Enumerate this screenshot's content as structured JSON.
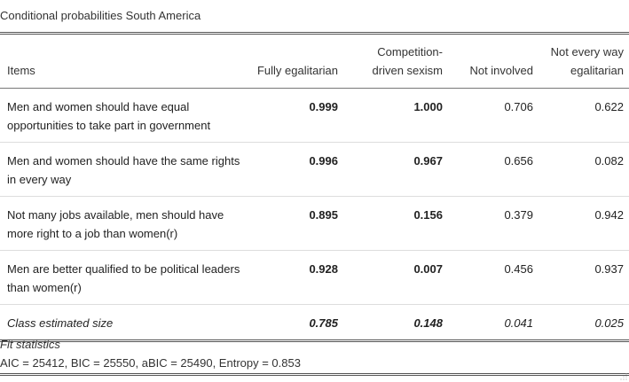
{
  "caption": "Conditional probabilities South America",
  "table": {
    "headers": {
      "items": "Items",
      "col1": "Fully egalitarian",
      "col2_line1": "Competition-",
      "col2_line2": "driven sexism",
      "col3": "Not involved",
      "col4_line1": "Not every way",
      "col4_line2": "egalitarian"
    },
    "rows": [
      {
        "item": "Men and women should have equal opportunities to take part in government",
        "v1": "0.999",
        "v2": "1.000",
        "v3": "0.706",
        "v4": "0.622"
      },
      {
        "item": "Men and women should have the same rights in every way",
        "v1": "0.996",
        "v2": "0.967",
        "v3": "0.656",
        "v4": "0.082"
      },
      {
        "item": "Not many jobs available, men should have more right to a job than women(r)",
        "v1": "0.895",
        "v2": "0.156",
        "v3": "0.379",
        "v4": "0.942"
      },
      {
        "item": "Men are better qualified to be political leaders than women(r)",
        "v1": "0.928",
        "v2": "0.007",
        "v3": "0.456",
        "v4": "0.937"
      }
    ],
    "size_row": {
      "label": "Class estimated size",
      "v1": "0.785",
      "v2": "0.148",
      "v3": "0.041",
      "v4": "0.025"
    }
  },
  "footer": {
    "fit_title": "Fit statistics",
    "fit_values": "AIC = 25412, BIC = 25550, aBIC = 25490, Entropy = 0.853"
  }
}
